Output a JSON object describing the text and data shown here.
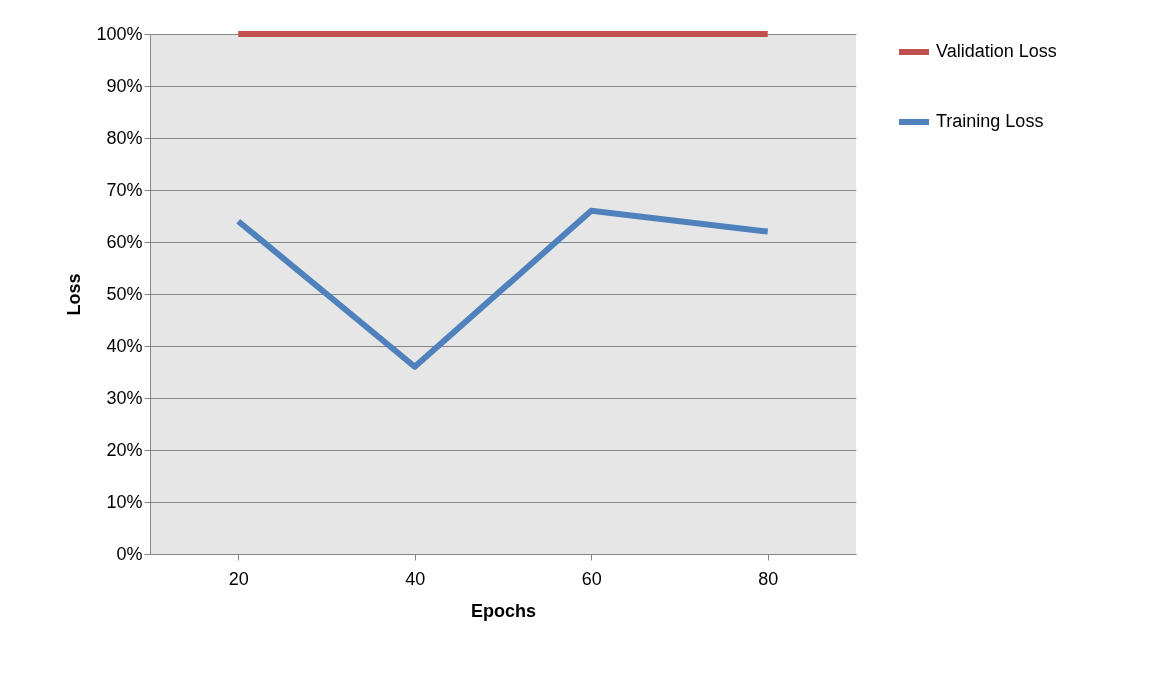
{
  "chart_data": {
    "type": "line",
    "xlabel": "Epochs",
    "ylabel": "Loss",
    "categories": [
      "20",
      "40",
      "60",
      "80"
    ],
    "series": [
      {
        "name": "Validation Loss",
        "color": "#c0504d",
        "values": [
          100,
          100,
          100,
          100
        ]
      },
      {
        "name": "Training Loss",
        "color": "#4f81bd",
        "values": [
          64,
          36,
          66,
          62
        ]
      }
    ],
    "ylim": [
      0,
      100
    ],
    "yticks": [
      {
        "value": 0,
        "label": "0%"
      },
      {
        "value": 10,
        "label": "10%"
      },
      {
        "value": 20,
        "label": "20%"
      },
      {
        "value": 30,
        "label": "30%"
      },
      {
        "value": 40,
        "label": "40%"
      },
      {
        "value": 50,
        "label": "50%"
      },
      {
        "value": 60,
        "label": "60%"
      },
      {
        "value": 70,
        "label": "70%"
      },
      {
        "value": 80,
        "label": "80%"
      },
      {
        "value": 90,
        "label": "90%"
      },
      {
        "value": 100,
        "label": "100%"
      }
    ],
    "grid": "y",
    "legend": "right"
  }
}
